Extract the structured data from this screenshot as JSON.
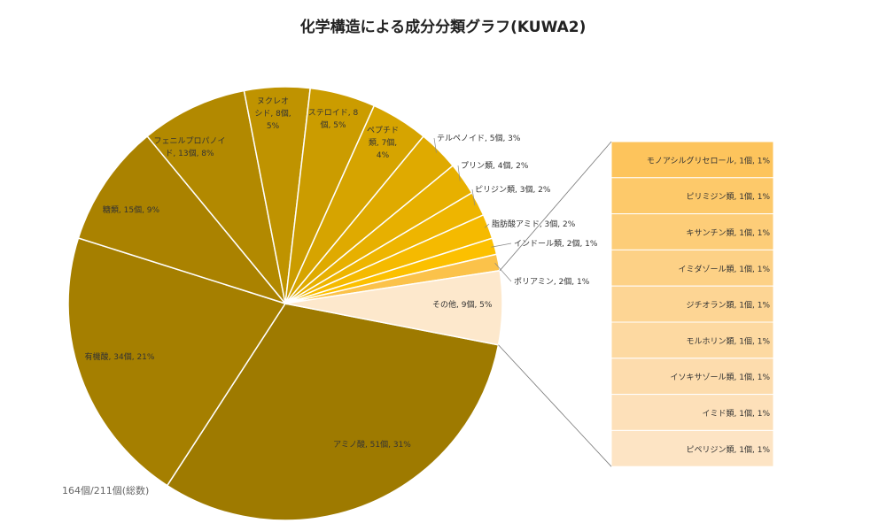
{
  "chart_data": {
    "type": "pie",
    "title": "化学構造による成分分類グラフ(KUWA2)",
    "total_note": "164個/211個(総数)",
    "slices": [
      {
        "name": "アミノ酸",
        "count": 51,
        "percent": "31%",
        "label": "アミノ酸, 51個, 31%",
        "color": "#9e7a00"
      },
      {
        "name": "有機酸",
        "count": 34,
        "percent": "21%",
        "label": "有機酸, 34個, 21%",
        "color": "#a57f00"
      },
      {
        "name": "糖類",
        "count": 15,
        "percent": "9%",
        "label": "糖類, 15個, 9%",
        "color": "#aa8200"
      },
      {
        "name": "フェニルプロパノイド",
        "count": 13,
        "percent": "8%",
        "label": "フェニルプロパノイド, 13個, 8%",
        "color": "#b28900"
      },
      {
        "name": "ヌクレオシド",
        "count": 8,
        "percent": "5%",
        "label": "ヌクレオシド, 8個, 5%",
        "color": "#bf9300"
      },
      {
        "name": "ステロイド",
        "count": 8,
        "percent": "5%",
        "label": "ステロイド, 8個, 5%",
        "color": "#cb9c00"
      },
      {
        "name": "ペプチド類",
        "count": 7,
        "percent": "4%",
        "label": "ペプチド類, 7個, 4%",
        "color": "#d6a400"
      },
      {
        "name": "テルペノイド",
        "count": 5,
        "percent": "3%",
        "label": "テルペノイド, 5個, 3%",
        "color": "#dfaa00"
      },
      {
        "name": "プリン類",
        "count": 4,
        "percent": "2%",
        "label": "プリン類, 4個, 2%",
        "color": "#e7b000"
      },
      {
        "name": "ピリジン類",
        "count": 3,
        "percent": "2%",
        "label": "ピリジン類, 3個, 2%",
        "color": "#eeb500"
      },
      {
        "name": "脂肪酸アミド",
        "count": 3,
        "percent": "2%",
        "label": "脂肪酸アミド, 3個, 2%",
        "color": "#f5ba00"
      },
      {
        "name": "インドール類",
        "count": 2,
        "percent": "1%",
        "label": "インドール類, 2個, 1%",
        "color": "#fcc000"
      },
      {
        "name": "ポリアミン",
        "count": 2,
        "percent": "1%",
        "label": "ポリアミン, 2個, 1%",
        "color": "#fbc24a"
      },
      {
        "name": "その他",
        "count": 9,
        "percent": "5%",
        "label": "その他, 9個, 5%",
        "color": "#fde8cc"
      }
    ],
    "breakdown": {
      "of": "その他",
      "items": [
        {
          "label": "モノアシルグリセロール, 1個, 1%",
          "count": 1,
          "color": "#fdc45c"
        },
        {
          "label": "ピリミジン類, 1個, 1%",
          "count": 1,
          "color": "#fdc96a"
        },
        {
          "label": "キサンチン類, 1個, 1%",
          "count": 1,
          "color": "#fdcd78"
        },
        {
          "label": "イミダゾール類, 1個, 1%",
          "count": 1,
          "color": "#fdd186"
        },
        {
          "label": "ジチオラン類, 1個, 1%",
          "count": 1,
          "color": "#fdd594"
        },
        {
          "label": "モルホリン類, 1個, 1%",
          "count": 1,
          "color": "#fdd9a1"
        },
        {
          "label": "イソキサゾール類, 1個, 1%",
          "count": 1,
          "color": "#fddcad"
        },
        {
          "label": "イミド類, 1個, 1%",
          "count": 1,
          "color": "#fde0b9"
        },
        {
          "label": "ピペリジン類, 1個, 1%",
          "count": 1,
          "color": "#fde4c4"
        }
      ]
    }
  }
}
